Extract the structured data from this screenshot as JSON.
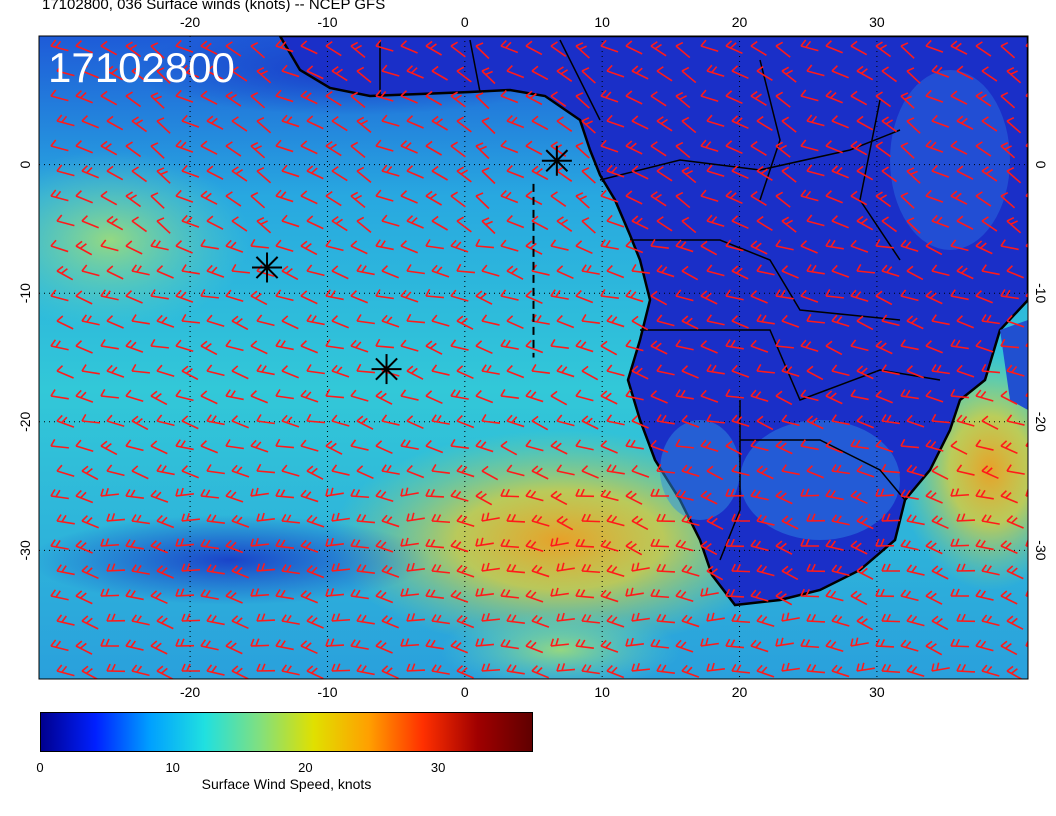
{
  "title": "17102800, 036 Surface winds (knots) -- NCEP GFS",
  "stamp": "17102800",
  "map": {
    "lon_range": [
      -31,
      41
    ],
    "lat_range": [
      -40,
      10
    ],
    "lon_ticks": [
      "-20",
      "-10",
      "0",
      "10",
      "20",
      "30"
    ],
    "lat_ticks": [
      "0",
      "-10",
      "-20",
      "-30"
    ],
    "lon_tick_values": [
      -20,
      -10,
      0,
      10,
      20,
      30
    ],
    "lat_tick_values": [
      0,
      -10,
      -20,
      -30
    ],
    "markers": [
      {
        "name": "asterisk",
        "lon": 6.7,
        "lat": 0.3
      },
      {
        "name": "asterisk",
        "lon": -14.4,
        "lat": -8.0
      },
      {
        "name": "asterisk",
        "lon": -5.7,
        "lat": -15.9
      }
    ],
    "dashed_line": {
      "lon": 5.0,
      "lat_from": -1.5,
      "lat_to": -15.0
    },
    "barb_color": "#ff1a1a",
    "coast_color": "#000000"
  },
  "colorbar": {
    "label": "Surface Wind Speed, knots",
    "ticks": [
      "0",
      "10",
      "20",
      "30"
    ],
    "tick_values": [
      0,
      10,
      20,
      30
    ],
    "min": 0,
    "max": 37,
    "colors": [
      "#00008f",
      "#0020ff",
      "#00a0ff",
      "#20e0e0",
      "#80e080",
      "#e0e000",
      "#ffa000",
      "#ff3000",
      "#a00000",
      "#600000"
    ]
  }
}
